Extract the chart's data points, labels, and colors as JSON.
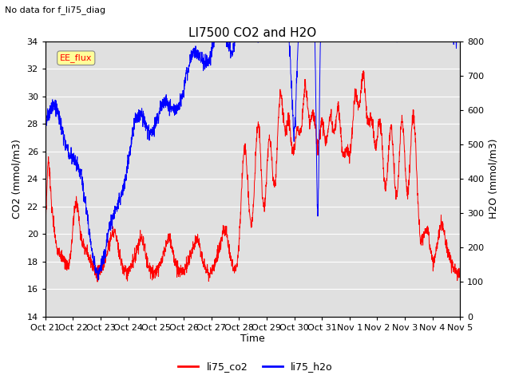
{
  "title": "LI7500 CO2 and H2O",
  "subtitle": "No data for f_li75_diag",
  "xlabel": "Time",
  "ylabel_left": "CO2 (mmol/m3)",
  "ylabel_right": "H2O (mmol/m3)",
  "ylim_left": [
    14,
    34
  ],
  "ylim_right": [
    0,
    800
  ],
  "yticks_left": [
    14,
    16,
    18,
    20,
    22,
    24,
    26,
    28,
    30,
    32,
    34
  ],
  "yticks_right": [
    0,
    100,
    200,
    300,
    400,
    500,
    600,
    700,
    800
  ],
  "xtick_labels": [
    "Oct 21",
    "Oct 22",
    "Oct 23",
    "Oct 24",
    "Oct 25",
    "Oct 26",
    "Oct 27",
    "Oct 28",
    "Oct 29",
    "Oct 30",
    "Oct 31",
    "Nov 1",
    "Nov 2",
    "Nov 3",
    "Nov 4",
    "Nov 5"
  ],
  "color_co2": "#ff0000",
  "color_h2o": "#0000ff",
  "legend_label_co2": "li75_co2",
  "legend_label_h2o": "li75_h2o",
  "annotation_box": "EE_flux",
  "background_color": "#e0e0e0",
  "grid_color": "#ffffff"
}
